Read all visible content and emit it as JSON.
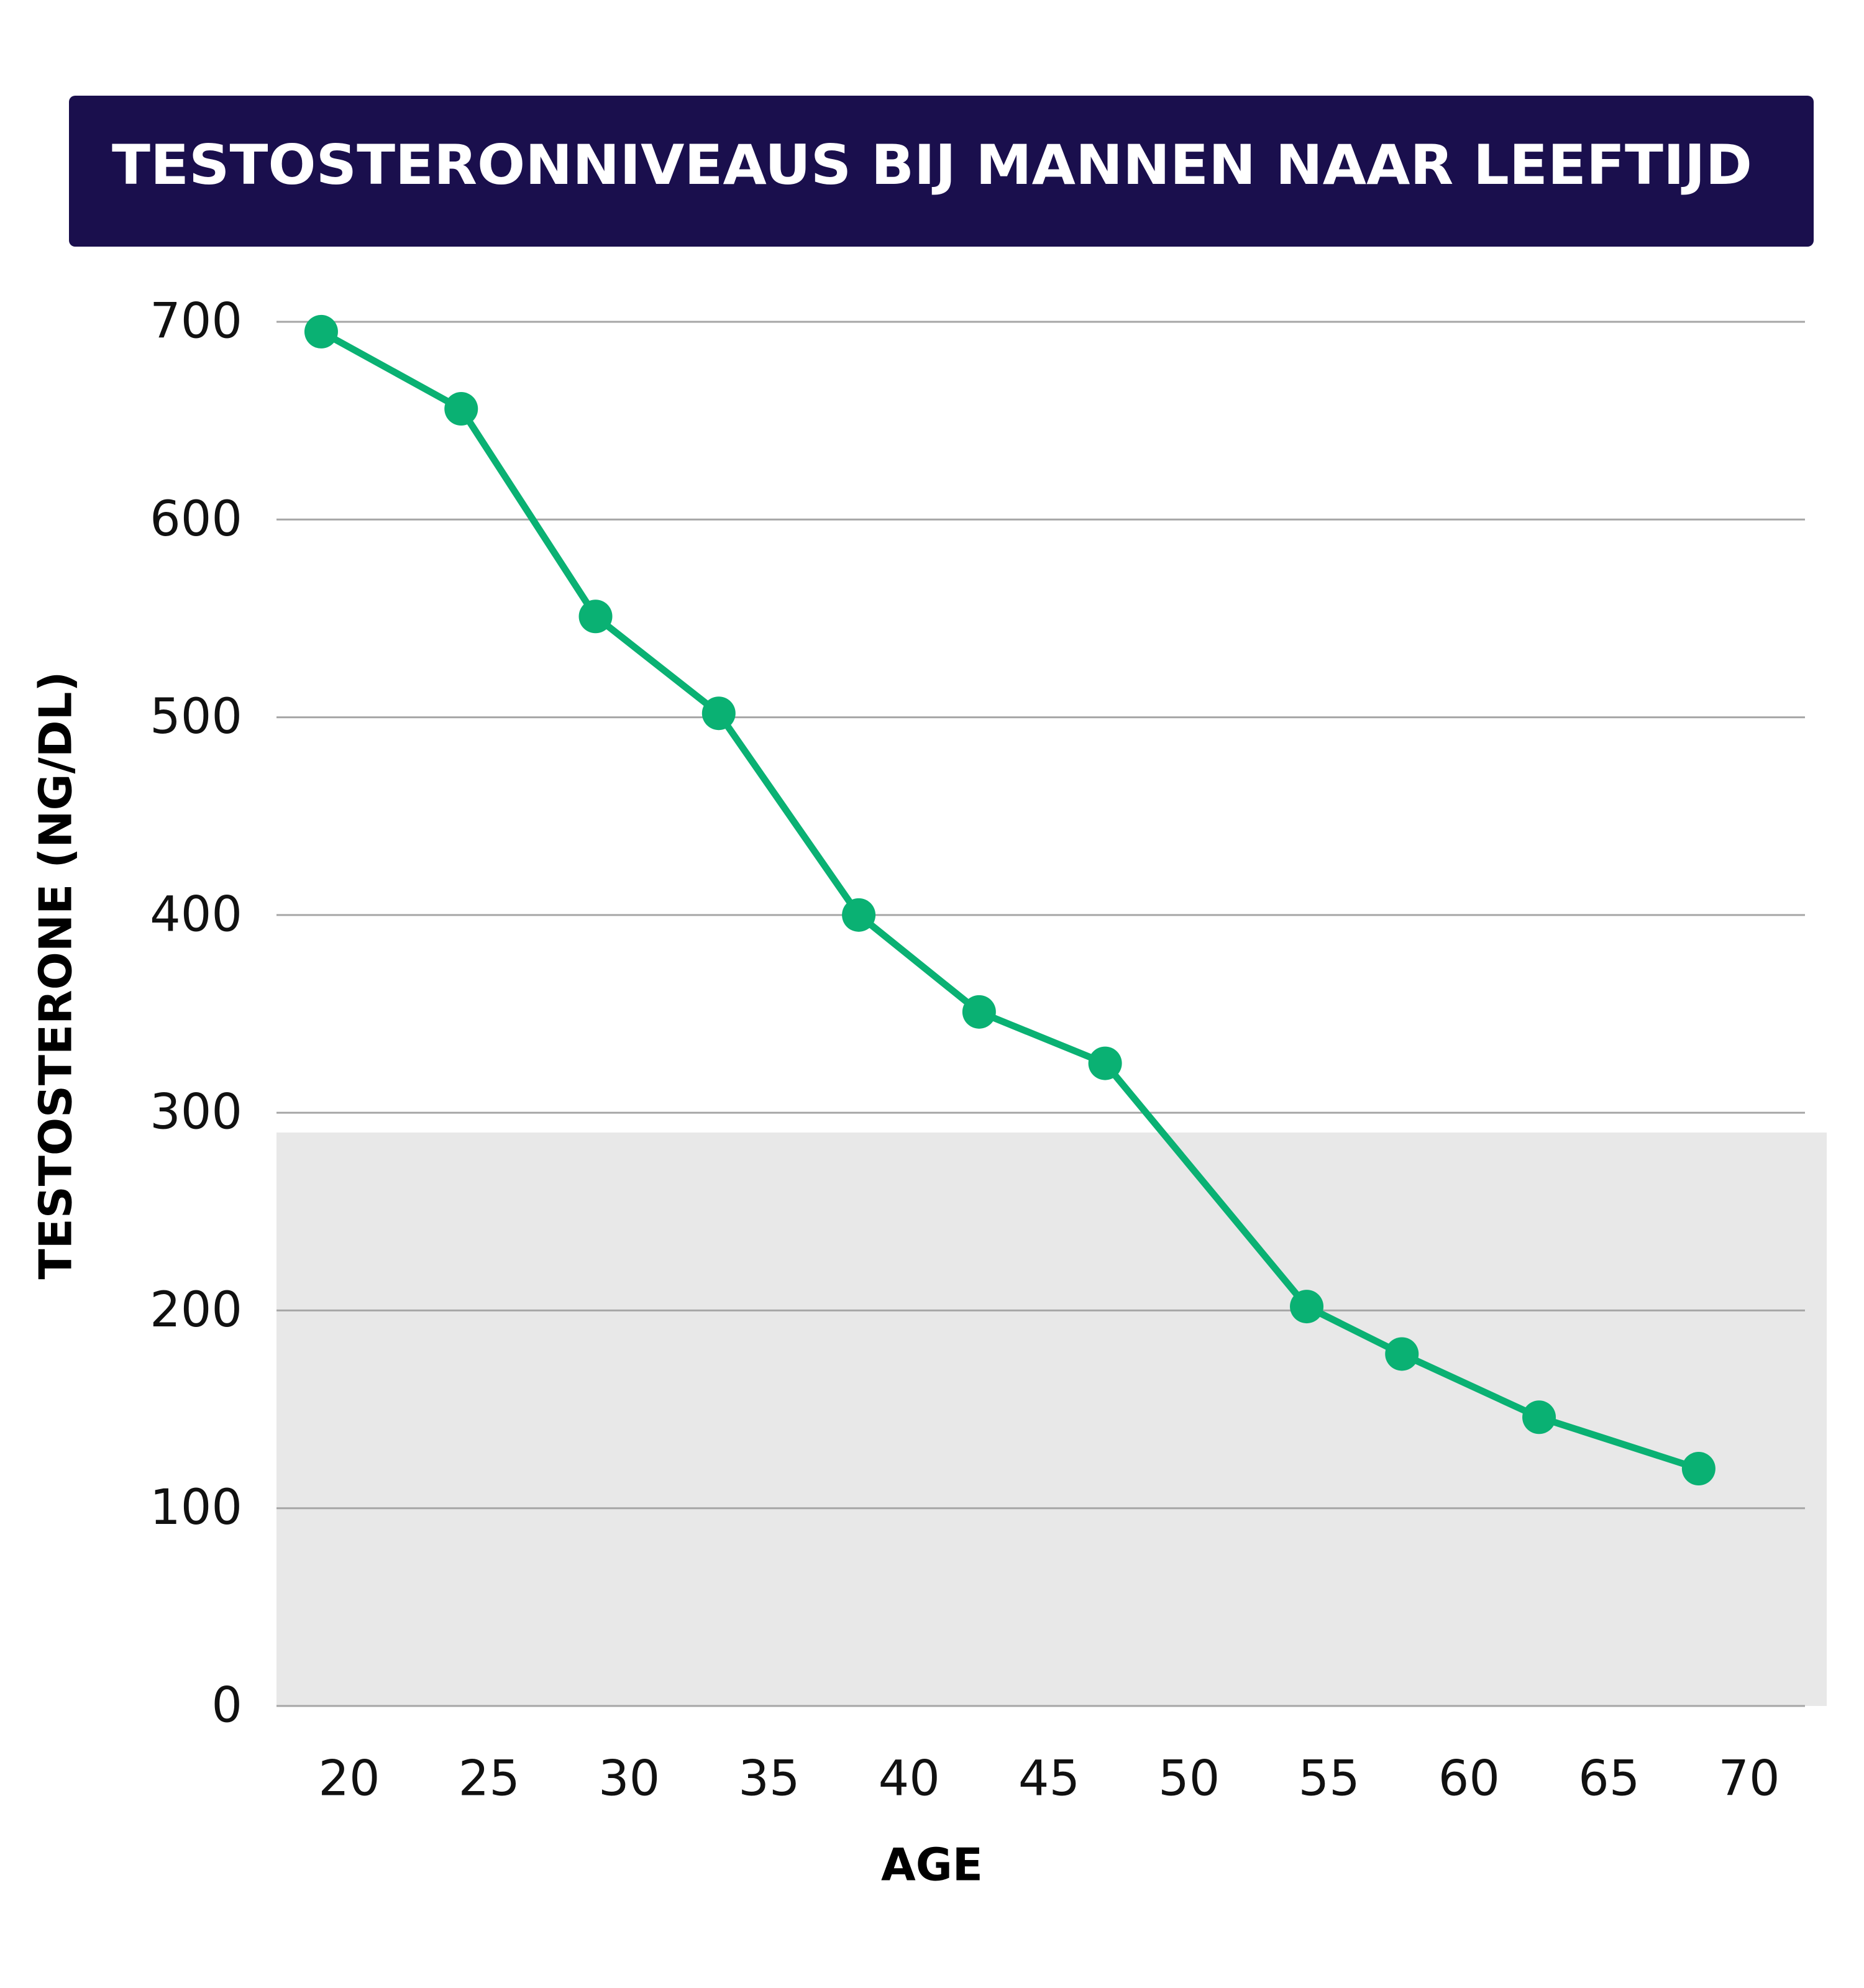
{
  "chart_data": {
    "type": "line",
    "title": "TESTOSTERONNIVEAUS BIJ MANNEN NAAR LEEFTIJD",
    "xlabel": "AGE",
    "ylabel": "TESTOSTERONE (NG/DL)",
    "xlim": [
      20,
      70
    ],
    "ylim": [
      0,
      700
    ],
    "x_ticks": [
      20,
      25,
      30,
      35,
      40,
      45,
      50,
      55,
      60,
      65,
      70
    ],
    "y_ticks": [
      0,
      100,
      200,
      300,
      400,
      500,
      600,
      700
    ],
    "grid": true,
    "shaded_region": {
      "y_from": 0,
      "y_to": 290
    },
    "series": [
      {
        "x": [
          19,
          24,
          28.8,
          33.2,
          38.2,
          42.5,
          47,
          54.2,
          57.6,
          62.5,
          68.2
        ],
        "values": [
          695,
          656,
          551,
          502,
          400,
          351,
          325,
          202,
          178,
          146,
          120
        ]
      }
    ]
  },
  "colors": {
    "title_bg": "#1a0f4d",
    "title_text": "#ffffff",
    "line": "#0ab173",
    "marker": "#0ab173",
    "grid": "#a6a6a6",
    "shaded": "#e8e8e8",
    "text": "#111111"
  }
}
